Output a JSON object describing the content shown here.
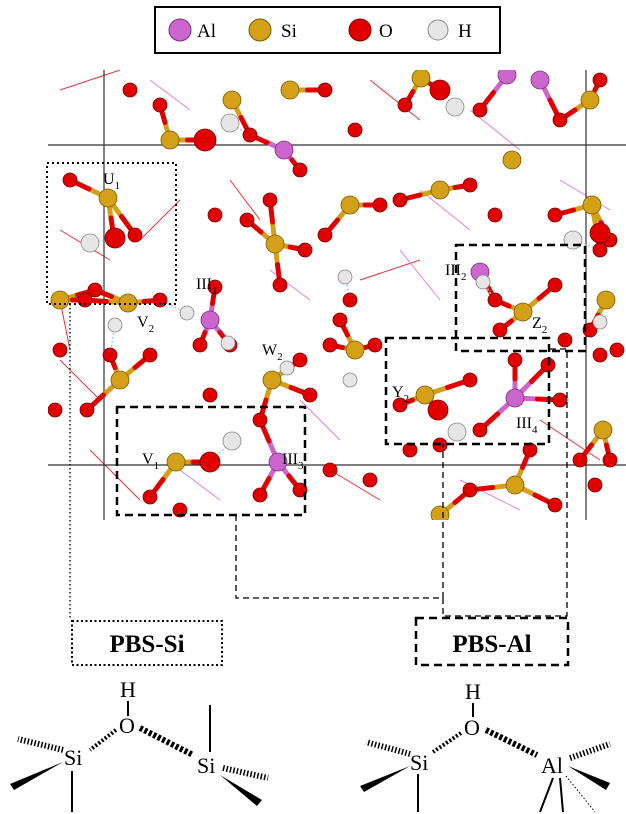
{
  "legend": {
    "items": [
      {
        "symbol": "Al",
        "color": "#cc66cc"
      },
      {
        "symbol": "Si",
        "color": "#d4a017"
      },
      {
        "symbol": "O",
        "color": "#e00000"
      },
      {
        "symbol": "H",
        "color": "#e6e6e6"
      }
    ]
  },
  "site_labels": [
    {
      "main": "U",
      "sub": "1"
    },
    {
      "main": "III",
      "sub": "1"
    },
    {
      "main": "V",
      "sub": "2"
    },
    {
      "main": "W",
      "sub": "2"
    },
    {
      "main": "V",
      "sub": "1"
    },
    {
      "main": "III",
      "sub": "3"
    },
    {
      "main": "III",
      "sub": "2"
    },
    {
      "main": "Z",
      "sub": "2"
    },
    {
      "main": "Y",
      "sub": "2"
    },
    {
      "main": "III",
      "sub": "4"
    }
  ],
  "boxes": {
    "pbs_si": "PBS-Si",
    "pbs_al": "PBS-Al"
  },
  "schemes": {
    "si": {
      "h": "H",
      "o": "O",
      "left": "Si",
      "right": "Si"
    },
    "al": {
      "h": "H",
      "o": "O",
      "left": "Si",
      "right": "Al"
    }
  }
}
